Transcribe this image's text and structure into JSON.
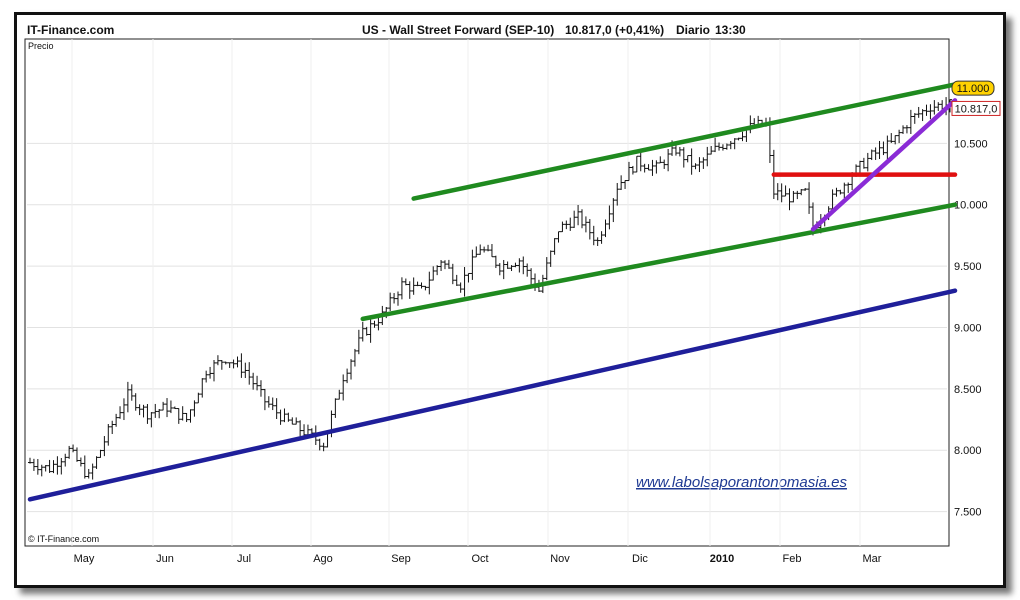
{
  "header": {
    "brand": "IT-Finance.com",
    "title": "US - Wall Street Forward (SEP-10)",
    "quote": "10.817,0 (+0,41%)",
    "period": "Diario",
    "time": "13:30"
  },
  "labels": {
    "y_axis": "Precio",
    "copyright": "© IT-Finance.com",
    "watermark": "www.labolsaporantonomasia.es",
    "badge_level": "11.000",
    "badge_price": "10.817,0"
  },
  "chart_data": {
    "type": "candlestick",
    "y_ticks": [
      "7.500",
      "8.000",
      "8.500",
      "9.000",
      "9.500",
      "10.000",
      "10.500"
    ],
    "y_tick_values": [
      7500,
      8000,
      8500,
      9000,
      9500,
      10000,
      10500
    ],
    "x_ticks": [
      "May",
      "Jun",
      "Jul",
      "Ago",
      "Sep",
      "Oct",
      "Nov",
      "Dic",
      "2010",
      "Feb",
      "Mar"
    ],
    "ylim": [
      7220,
      11350
    ],
    "bars": 235,
    "price_path": [
      [
        0,
        7900
      ],
      [
        5,
        7850
      ],
      [
        10,
        8000
      ],
      [
        15,
        7780
      ],
      [
        20,
        8150
      ],
      [
        25,
        8450
      ],
      [
        30,
        8300
      ],
      [
        35,
        8350
      ],
      [
        40,
        8250
      ],
      [
        45,
        8650
      ],
      [
        50,
        8750
      ],
      [
        55,
        8650
      ],
      [
        60,
        8400
      ],
      [
        65,
        8250
      ],
      [
        70,
        8150
      ],
      [
        75,
        8050
      ],
      [
        80,
        8600
      ],
      [
        85,
        8950
      ],
      [
        90,
        9100
      ],
      [
        95,
        9350
      ],
      [
        100,
        9300
      ],
      [
        105,
        9550
      ],
      [
        110,
        9350
      ],
      [
        115,
        9650
      ],
      [
        120,
        9500
      ],
      [
        125,
        9550
      ],
      [
        130,
        9300
      ],
      [
        135,
        9800
      ],
      [
        140,
        9900
      ],
      [
        145,
        9700
      ],
      [
        150,
        10150
      ],
      [
        155,
        10350
      ],
      [
        160,
        10300
      ],
      [
        165,
        10450
      ],
      [
        170,
        10300
      ],
      [
        175,
        10450
      ],
      [
        180,
        10550
      ],
      [
        185,
        10650
      ],
      [
        188,
        10650
      ],
      [
        190,
        10100
      ],
      [
        195,
        10050
      ],
      [
        198,
        10100
      ],
      [
        200,
        9800
      ],
      [
        205,
        10050
      ],
      [
        210,
        10250
      ],
      [
        215,
        10400
      ],
      [
        220,
        10500
      ],
      [
        225,
        10700
      ],
      [
        230,
        10800
      ],
      [
        235,
        10817
      ]
    ],
    "trendlines": [
      {
        "color": "#1f1f9a",
        "from": [
          0,
          7600
        ],
        "to": [
          235,
          9300
        ]
      },
      {
        "color": "#1f8a1f",
        "from": [
          85,
          9070
        ],
        "to": [
          235,
          10000
        ]
      },
      {
        "color": "#1f8a1f",
        "from": [
          98,
          10050
        ],
        "to": [
          235,
          10980
        ]
      },
      {
        "color": "#e01010",
        "from": [
          190,
          10245
        ],
        "to": [
          235,
          10245
        ]
      },
      {
        "color": "#8a2bd6",
        "from": [
          200,
          9800
        ],
        "to": [
          235,
          10850
        ]
      }
    ],
    "level_badge": 10950,
    "price_badge": 10817
  }
}
